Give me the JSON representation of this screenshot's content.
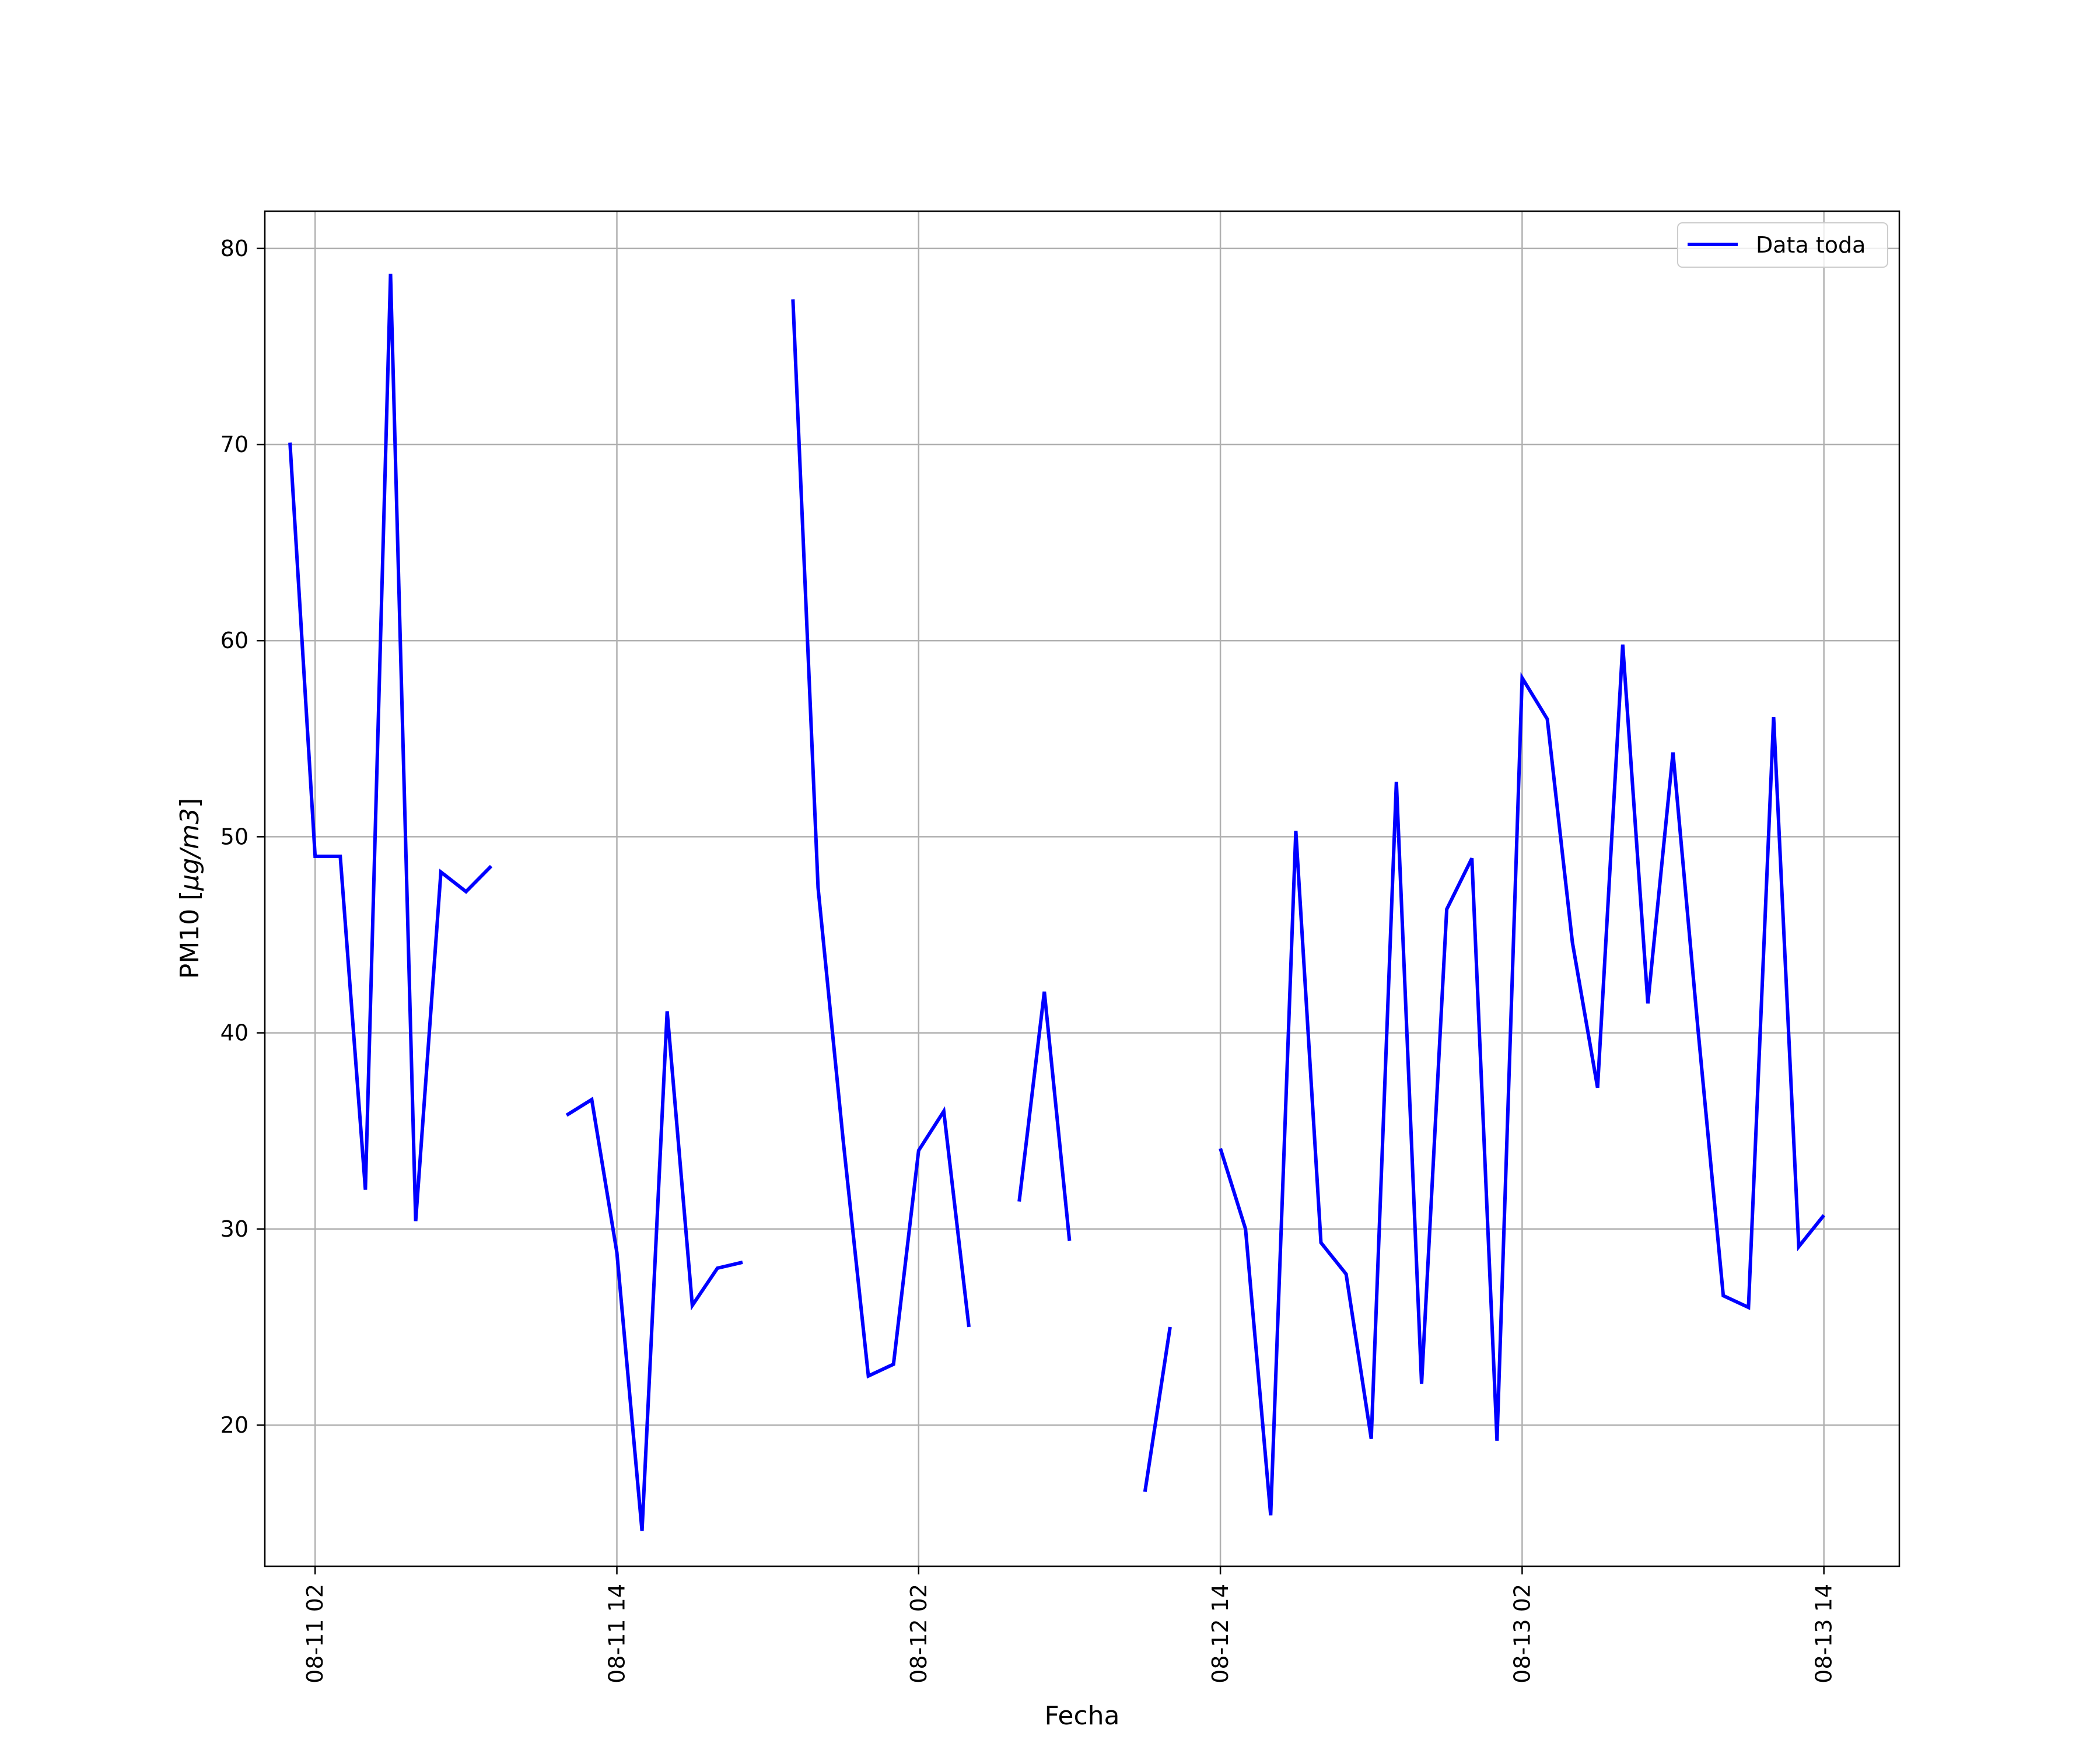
{
  "chart_data": {
    "type": "line",
    "xlabel": "Fecha",
    "ylabel_prefix": "PM10 [",
    "ylabel_math": "μg/m3",
    "ylabel_suffix": "]",
    "x_ticks": [
      "08-11 02",
      "08-11 14",
      "08-12 02",
      "08-12 14",
      "08-13 02",
      "08-13 14"
    ],
    "y_ticks": [
      "20",
      "30",
      "40",
      "50",
      "60",
      "70",
      "80"
    ],
    "xlim": [
      "2019-08-11 00:00",
      "2019-08-13 17:00"
    ],
    "ylim": [
      12.8,
      81.9
    ],
    "grid": true,
    "legend_position": "upper right",
    "series": [
      {
        "name": "Data toda",
        "color": "#0000ff",
        "points": [
          [
            "2019-08-11 01:00",
            70.1
          ],
          [
            "2019-08-11 02:00",
            49.0
          ],
          [
            "2019-08-11 03:00",
            49.0
          ],
          [
            "2019-08-11 04:00",
            32.0
          ],
          [
            "2019-08-11 05:00",
            78.7
          ],
          [
            "2019-08-11 06:00",
            30.4
          ],
          [
            "2019-08-11 07:00",
            48.2
          ],
          [
            "2019-08-11 08:00",
            47.2
          ],
          [
            "2019-08-11 09:00",
            48.5
          ],
          [
            "2019-08-11 10:00",
            null
          ],
          [
            "2019-08-11 11:00",
            null
          ],
          [
            "2019-08-11 12:00",
            35.8
          ],
          [
            "2019-08-11 13:00",
            36.6
          ],
          [
            "2019-08-11 14:00",
            28.8
          ],
          [
            "2019-08-11 15:00",
            14.6
          ],
          [
            "2019-08-11 16:00",
            41.1
          ],
          [
            "2019-08-11 17:00",
            26.1
          ],
          [
            "2019-08-11 18:00",
            28.0
          ],
          [
            "2019-08-11 19:00",
            28.3
          ],
          [
            "2019-08-11 20:00",
            null
          ],
          [
            "2019-08-11 21:00",
            77.4
          ],
          [
            "2019-08-11 22:00",
            47.4
          ],
          [
            "2019-08-11 23:00",
            34.5
          ],
          [
            "2019-08-12 00:00",
            22.5
          ],
          [
            "2019-08-12 01:00",
            23.1
          ],
          [
            "2019-08-12 02:00",
            34.0
          ],
          [
            "2019-08-12 03:00",
            36.0
          ],
          [
            "2019-08-12 04:00",
            25.0
          ],
          [
            "2019-08-12 05:00",
            null
          ],
          [
            "2019-08-12 06:00",
            31.4
          ],
          [
            "2019-08-12 07:00",
            42.1
          ],
          [
            "2019-08-12 08:00",
            29.4
          ],
          [
            "2019-08-12 09:00",
            null
          ],
          [
            "2019-08-12 10:00",
            null
          ],
          [
            "2019-08-12 11:00",
            16.6
          ],
          [
            "2019-08-12 12:00",
            25.0
          ],
          [
            "2019-08-12 13:00",
            null
          ],
          [
            "2019-08-12 14:00",
            34.1
          ],
          [
            "2019-08-12 15:00",
            30.0
          ],
          [
            "2019-08-12 16:00",
            15.4
          ],
          [
            "2019-08-12 17:00",
            50.3
          ],
          [
            "2019-08-12 18:00",
            29.3
          ],
          [
            "2019-08-12 19:00",
            27.7
          ],
          [
            "2019-08-12 20:00",
            19.3
          ],
          [
            "2019-08-12 21:00",
            52.8
          ],
          [
            "2019-08-12 22:00",
            22.1
          ],
          [
            "2019-08-12 23:00",
            46.3
          ],
          [
            "2019-08-13 00:00",
            48.9
          ],
          [
            "2019-08-13 01:00",
            19.2
          ],
          [
            "2019-08-13 02:00",
            58.1
          ],
          [
            "2019-08-13 03:00",
            56.0
          ],
          [
            "2019-08-13 04:00",
            44.6
          ],
          [
            "2019-08-13 05:00",
            37.2
          ],
          [
            "2019-08-13 06:00",
            59.8
          ],
          [
            "2019-08-13 07:00",
            41.5
          ],
          [
            "2019-08-13 08:00",
            54.3
          ],
          [
            "2019-08-13 09:00",
            40.1
          ],
          [
            "2019-08-13 10:00",
            26.6
          ],
          [
            "2019-08-13 11:00",
            26.0
          ],
          [
            "2019-08-13 12:00",
            56.1
          ],
          [
            "2019-08-13 13:00",
            29.1
          ],
          [
            "2019-08-13 14:00",
            30.7
          ]
        ]
      }
    ]
  }
}
